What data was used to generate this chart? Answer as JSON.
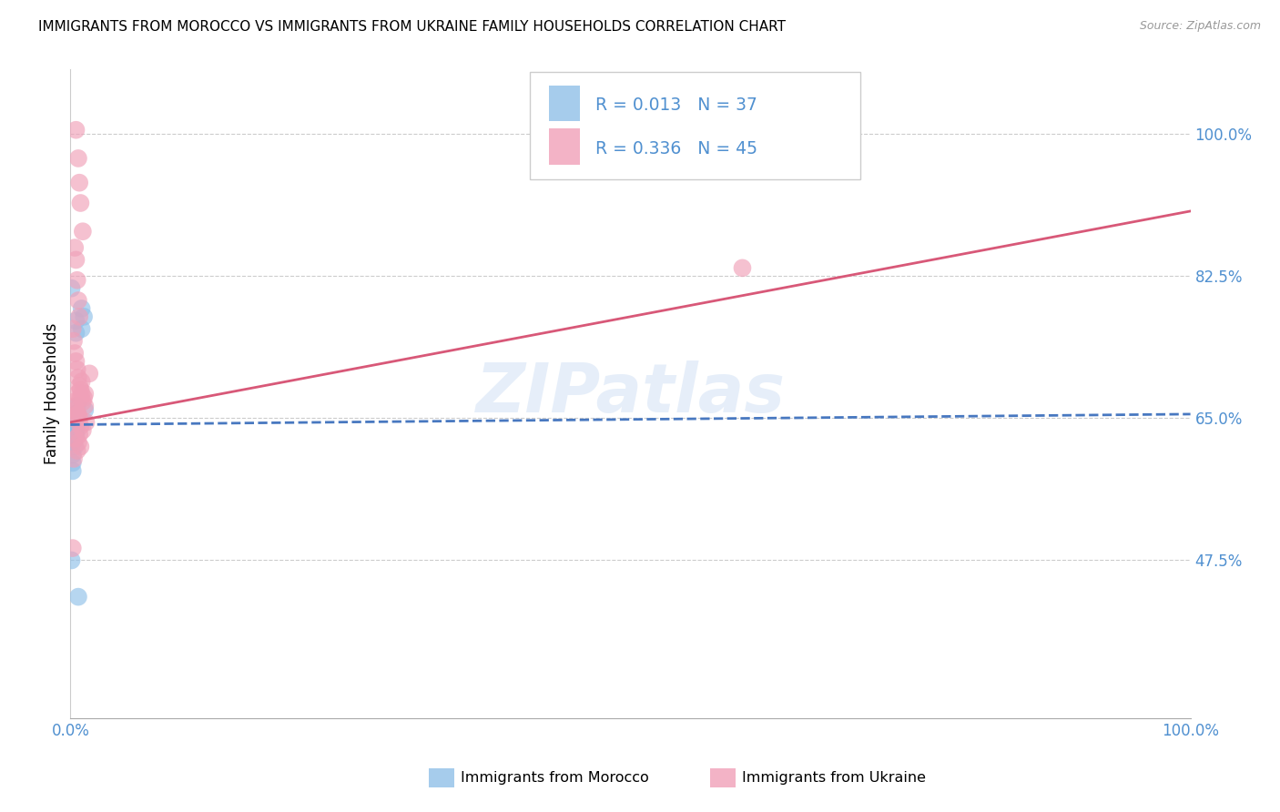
{
  "title": "IMMIGRANTS FROM MOROCCO VS IMMIGRANTS FROM UKRAINE FAMILY HOUSEHOLDS CORRELATION CHART",
  "source": "Source: ZipAtlas.com",
  "ylabel": "Family Households",
  "watermark": "ZIPatlas",
  "legend_r1": "0.013",
  "legend_n1": "37",
  "legend_r2": "0.336",
  "legend_n2": "45",
  "ytick_vals": [
    47.5,
    65.0,
    82.5,
    100.0
  ],
  "ytick_labels": [
    "47.5%",
    "65.0%",
    "82.5%",
    "100.0%"
  ],
  "xlim": [
    0.0,
    1.0
  ],
  "ylim": [
    28.0,
    108.0
  ],
  "color_morocco": "#90c0e8",
  "color_ukraine": "#f0a0b8",
  "color_morocco_line": "#4878c0",
  "color_ukraine_line": "#d85878",
  "color_axis_text": "#5090d0",
  "color_grid": "#cccccc",
  "title_fontsize": 11,
  "label_fontsize": 12,
  "scatter_size": 200,
  "scatter_alpha": 0.65,
  "morocco_x": [
    0.005,
    0.005,
    0.01,
    0.012,
    0.01,
    0.003,
    0.004,
    0.006,
    0.004,
    0.004,
    0.004,
    0.006,
    0.005,
    0.005,
    0.005,
    0.003,
    0.003,
    0.003,
    0.004,
    0.004,
    0.002,
    0.002,
    0.002,
    0.002,
    0.003,
    0.002,
    0.002,
    0.003,
    0.003,
    0.004,
    0.002,
    0.002,
    0.002,
    0.001,
    0.013,
    0.007,
    0.001
  ],
  "morocco_y": [
    75.5,
    77.0,
    78.5,
    77.5,
    76.0,
    64.5,
    65.5,
    66.5,
    65.0,
    64.5,
    63.5,
    65.5,
    64.0,
    63.5,
    63.0,
    63.5,
    64.0,
    64.5,
    63.5,
    63.0,
    63.0,
    63.5,
    64.0,
    63.0,
    63.0,
    62.5,
    62.0,
    63.5,
    62.5,
    61.5,
    60.5,
    59.5,
    58.5,
    47.5,
    66.0,
    43.0,
    81.0
  ],
  "ukraine_x": [
    0.005,
    0.007,
    0.008,
    0.009,
    0.011,
    0.004,
    0.005,
    0.006,
    0.007,
    0.008,
    0.002,
    0.003,
    0.004,
    0.005,
    0.006,
    0.007,
    0.008,
    0.009,
    0.01,
    0.012,
    0.003,
    0.004,
    0.005,
    0.006,
    0.007,
    0.008,
    0.014,
    0.017,
    0.01,
    0.013,
    0.006,
    0.009,
    0.011,
    0.013,
    0.002,
    0.003,
    0.6,
    0.009,
    0.011,
    0.008,
    0.005,
    0.007,
    0.009,
    0.006,
    0.003
  ],
  "ukraine_y": [
    100.5,
    97.0,
    94.0,
    91.5,
    88.0,
    86.0,
    84.5,
    82.0,
    79.5,
    77.5,
    76.0,
    74.5,
    73.0,
    72.0,
    71.0,
    70.0,
    69.0,
    68.5,
    68.0,
    67.5,
    67.0,
    66.5,
    66.0,
    65.5,
    65.5,
    65.0,
    64.5,
    70.5,
    69.5,
    68.0,
    68.0,
    67.5,
    67.0,
    66.5,
    49.0,
    65.0,
    83.5,
    64.0,
    63.5,
    63.0,
    62.5,
    62.0,
    61.5,
    61.0,
    60.0
  ],
  "morocco_line_x": [
    0.0,
    1.0
  ],
  "morocco_line_y": [
    64.2,
    65.5
  ],
  "ukraine_line_x": [
    0.0,
    1.0
  ],
  "ukraine_line_y": [
    64.5,
    90.5
  ]
}
